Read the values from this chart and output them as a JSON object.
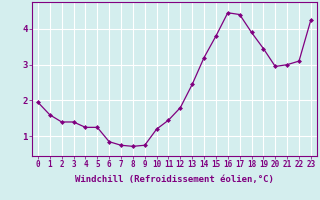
{
  "x": [
    0,
    1,
    2,
    3,
    4,
    5,
    6,
    7,
    8,
    9,
    10,
    11,
    12,
    13,
    14,
    15,
    16,
    17,
    18,
    19,
    20,
    21,
    22,
    23
  ],
  "y": [
    1.95,
    1.6,
    1.4,
    1.4,
    1.25,
    1.25,
    0.85,
    0.75,
    0.72,
    0.75,
    1.2,
    1.45,
    1.8,
    2.45,
    3.2,
    3.8,
    4.45,
    4.4,
    3.9,
    3.45,
    2.95,
    3.0,
    3.1,
    4.25
  ],
  "line_color": "#800080",
  "marker": "D",
  "markersize": 2.0,
  "linewidth": 0.9,
  "background_color": "#d4eeee",
  "grid_color": "#b8dada",
  "xlabel": "Windchill (Refroidissement éolien,°C)",
  "xlabel_fontsize": 6.5,
  "ylabel_ticks": [
    1,
    2,
    3,
    4
  ],
  "xtick_labels": [
    "0",
    "1",
    "2",
    "3",
    "4",
    "5",
    "6",
    "7",
    "8",
    "9",
    "10",
    "11",
    "12",
    "13",
    "14",
    "15",
    "16",
    "17",
    "18",
    "19",
    "20",
    "21",
    "22",
    "23"
  ],
  "ylim": [
    0.45,
    4.75
  ],
  "xlim": [
    -0.5,
    23.5
  ],
  "tick_fontsize": 5.5,
  "tick_color": "#800080",
  "spine_color": "#800080"
}
